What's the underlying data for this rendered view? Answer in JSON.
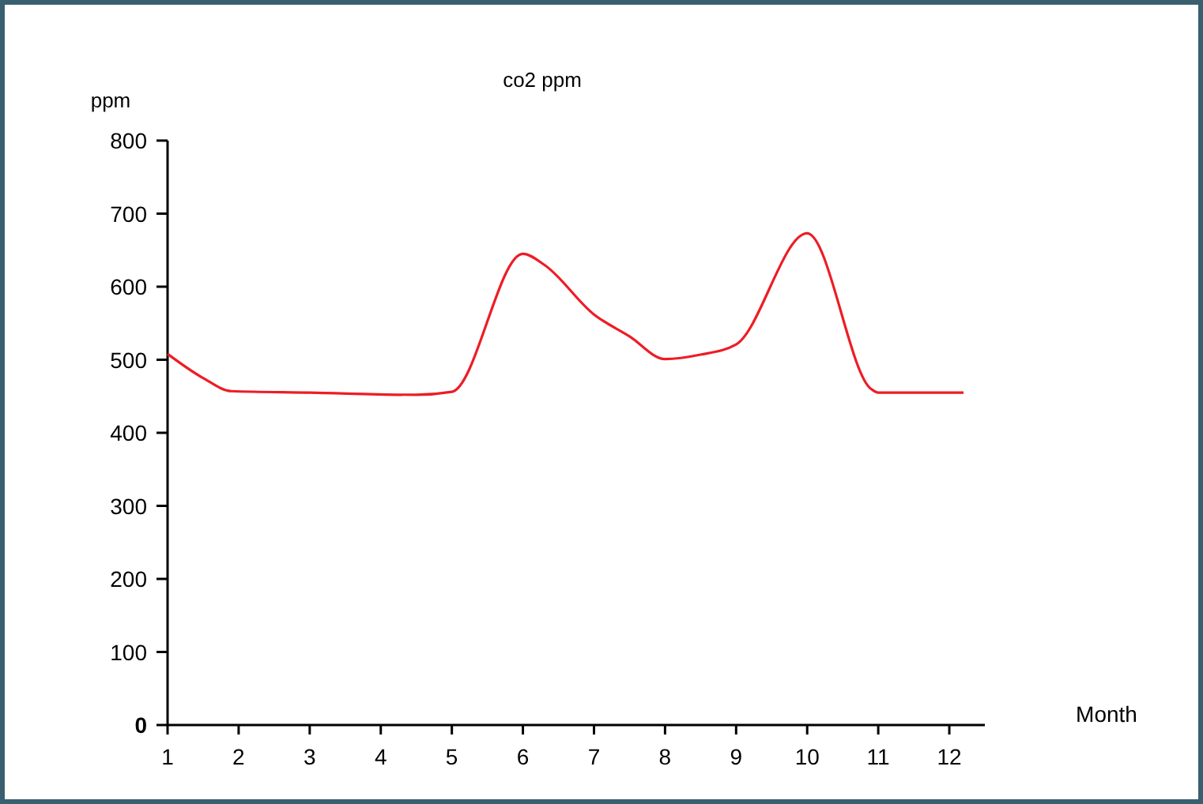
{
  "chart_data": {
    "type": "line",
    "title": "co2 ppm",
    "ylabel": "ppm",
    "xlabel": "Month",
    "x": [
      1,
      1.5,
      1.9,
      3,
      4.5,
      5,
      6,
      6.3,
      7,
      7.5,
      8,
      8.5,
      9,
      10,
      10.9,
      11,
      12.2
    ],
    "series": [
      {
        "color": "#ee1c25",
        "values": [
          508,
          475,
          457,
          455,
          452,
          456,
          645,
          630,
          562,
          532,
          501,
          507,
          521,
          673,
          460,
          455,
          455
        ]
      }
    ],
    "xlim": [
      1,
      12.5
    ],
    "xticks": [
      1,
      2,
      3,
      4,
      5,
      6,
      7,
      8,
      9,
      10,
      11,
      12
    ],
    "ylim": [
      0,
      800
    ],
    "yticks": [
      0,
      100,
      200,
      300,
      400,
      500,
      600,
      700,
      800
    ],
    "grid": false,
    "marker": "none",
    "line_style": "solid"
  }
}
